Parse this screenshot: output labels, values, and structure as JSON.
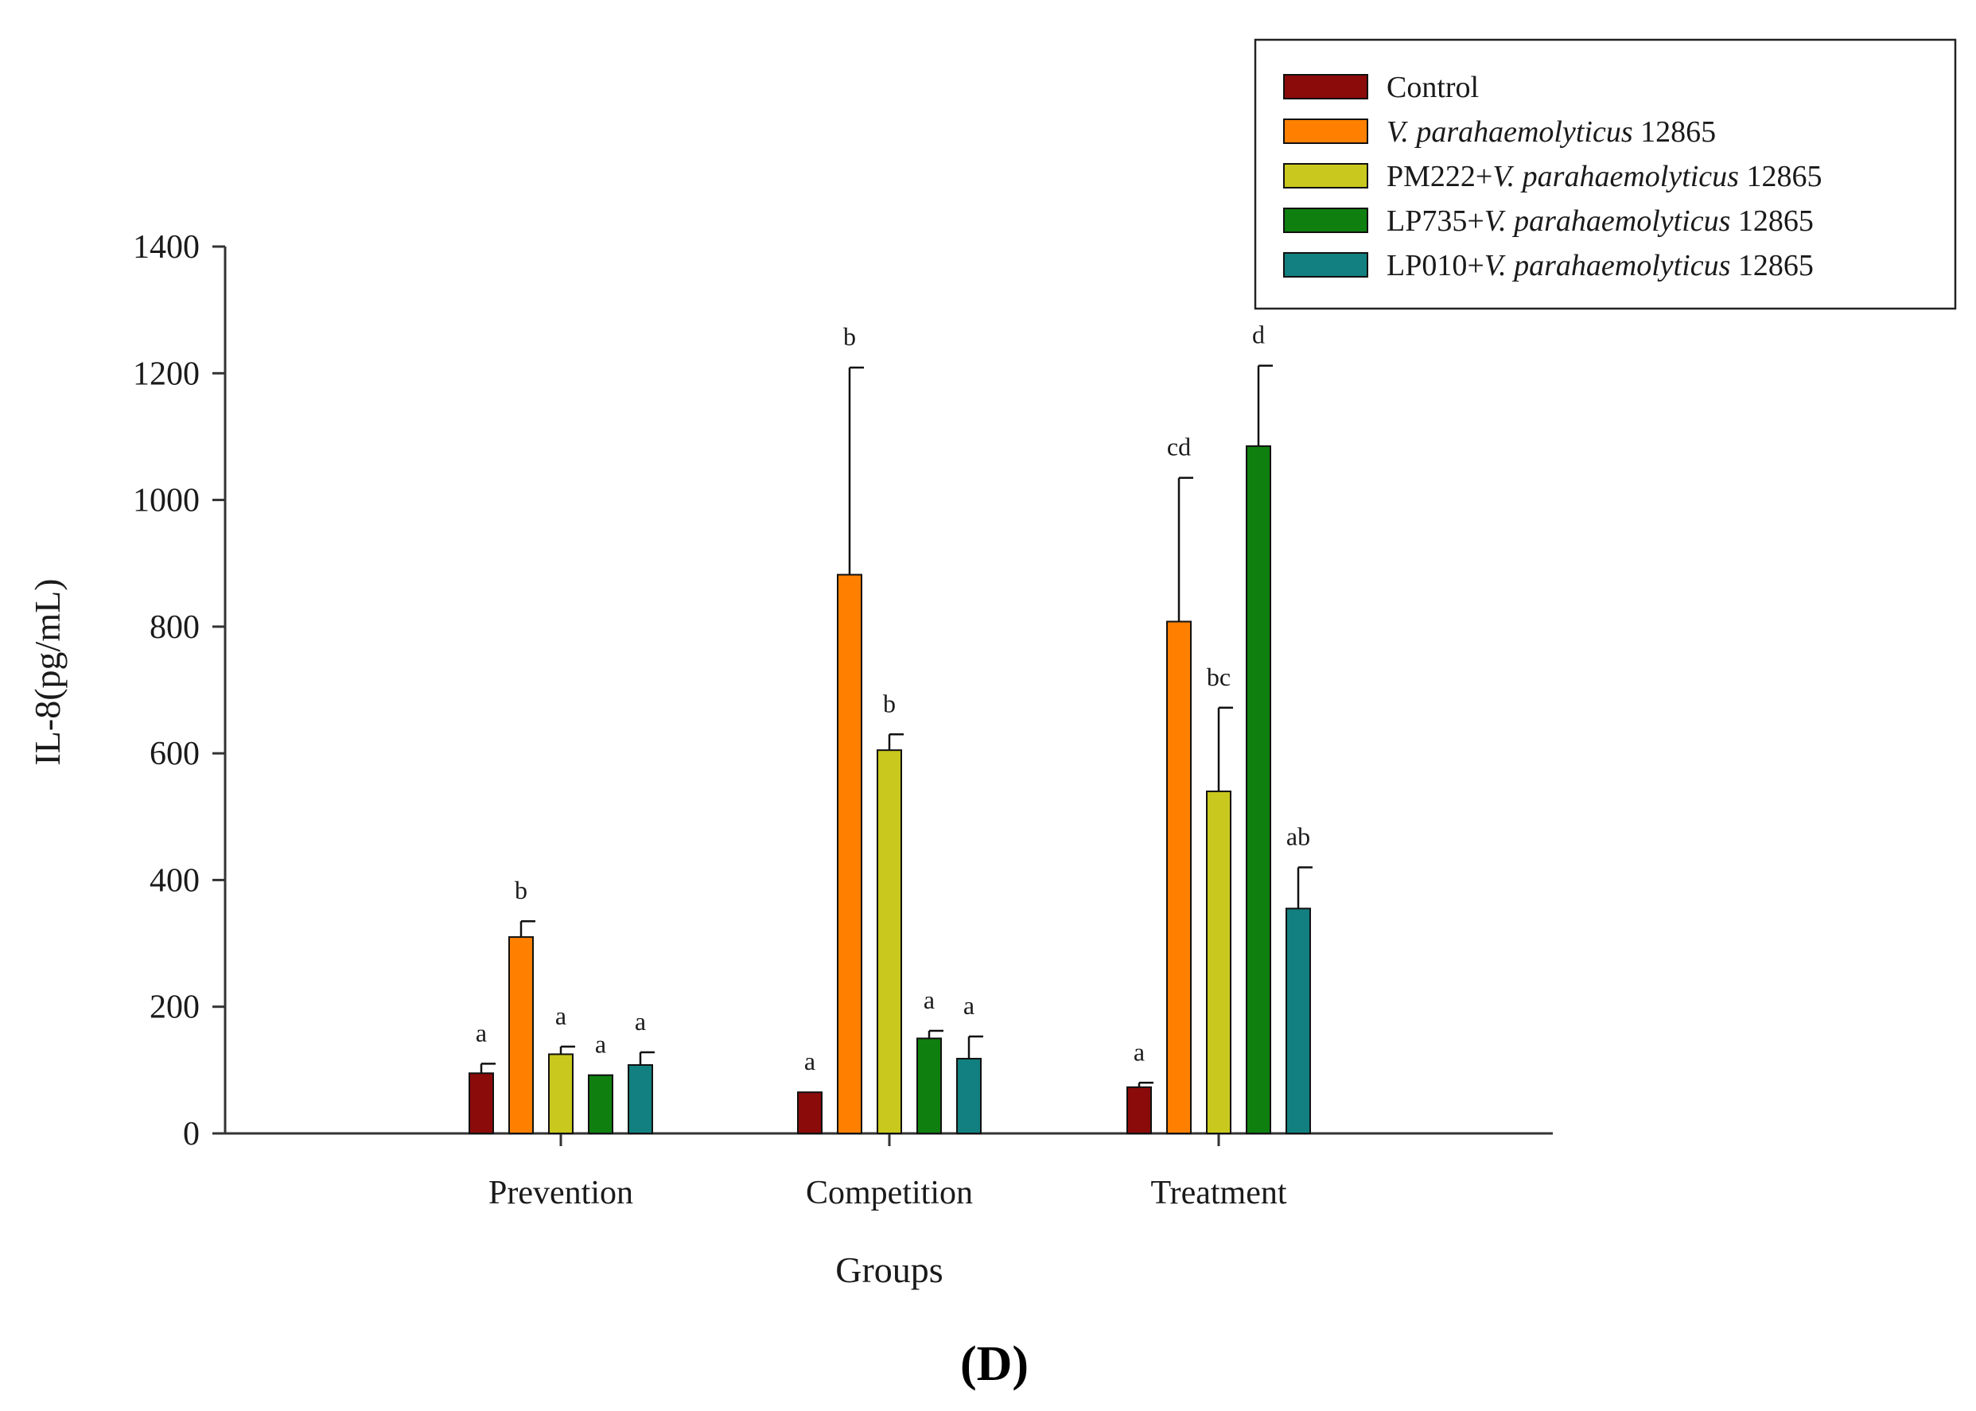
{
  "chart_data": {
    "type": "bar",
    "xlabel": "Groups",
    "ylabel": "IL-8(pg/mL)",
    "ylim": [
      0,
      1400
    ],
    "yticks": [
      0,
      200,
      400,
      600,
      800,
      1000,
      1200,
      1400
    ],
    "categories": [
      "Prevention",
      "Competition",
      "Treatment"
    ],
    "legend_position": "top-right",
    "panel_label": "(D)",
    "series": [
      {
        "name": "Control",
        "name_prefix": "",
        "name_italic": "",
        "name_suffix": "",
        "color": "#8b0a0a",
        "values": [
          95,
          65,
          73
        ],
        "errors": [
          15,
          0,
          7
        ],
        "letters": [
          "a",
          "a",
          "a"
        ]
      },
      {
        "name": "V. parahaemolyticus 12865",
        "name_prefix": "",
        "name_italic": "V. parahaemolyticus",
        "name_suffix": " 12865",
        "color": "#ff8000",
        "values": [
          310,
          882,
          808
        ],
        "errors": [
          25,
          327,
          227
        ],
        "letters": [
          "b",
          "b",
          "cd"
        ]
      },
      {
        "name": "PM222+V. parahaemolyticus 12865",
        "name_prefix": "PM222+",
        "name_italic": "V. parahaemolyticus",
        "name_suffix": " 12865",
        "color": "#c8c81e",
        "values": [
          125,
          605,
          540
        ],
        "errors": [
          12,
          25,
          132
        ],
        "letters": [
          "a",
          "b",
          "bc"
        ]
      },
      {
        "name": "LP735+V. parahaemolyticus 12865",
        "name_prefix": "LP735+",
        "name_italic": "V. parahaemolyticus",
        "name_suffix": " 12865",
        "color": "#0f7f0f",
        "values": [
          92,
          150,
          1085
        ],
        "errors": [
          0,
          12,
          127
        ],
        "letters": [
          "a",
          "a",
          "d"
        ]
      },
      {
        "name": "LP010+V. parahaemolyticus 12865",
        "name_prefix": "LP010+",
        "name_italic": "V. parahaemolyticus",
        "name_suffix": " 12865",
        "color": "#128080",
        "values": [
          108,
          118,
          355
        ],
        "errors": [
          20,
          35,
          65
        ],
        "letters": [
          "a",
          "a",
          "ab"
        ]
      }
    ]
  }
}
